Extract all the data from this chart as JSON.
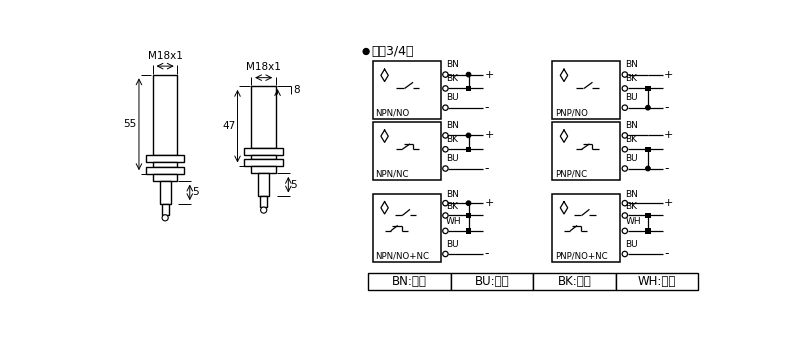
{
  "bg_color": "#ffffff",
  "title_text": "直涁3/4线",
  "color_table": [
    "BN:棕色",
    "BU:兰色",
    "BK:黑色",
    "WH:白色"
  ],
  "dim_labels": [
    "M18x1",
    "M18x1",
    "55",
    "47",
    "8",
    "5",
    "5"
  ],
  "circuit_labels": [
    [
      "NPN/NO",
      "NPN/NC",
      "NPN/NO+NC"
    ],
    [
      "PNP/NO",
      "PNP/NC",
      "PNP/NO+NC"
    ]
  ],
  "circuit_types": [
    "NO",
    "NC",
    "NO+NC"
  ]
}
